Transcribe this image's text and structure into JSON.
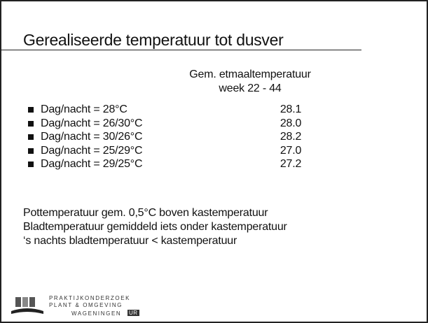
{
  "header": {
    "title": "Gerealiseerde temperatuur tot dusver"
  },
  "table": {
    "column_header": [
      "Gem. etmaaltemperatuur",
      "week 22 - 44"
    ],
    "rows": [
      {
        "label": "Dag/nacht = 28°C",
        "value": "28.1"
      },
      {
        "label": "Dag/nacht = 26/30°C",
        "value": "28.0"
      },
      {
        "label": "Dag/nacht = 30/26°C",
        "value": "28.2"
      },
      {
        "label": "Dag/nacht = 25/29°C",
        "value": "27.0"
      },
      {
        "label": "Dag/nacht = 29/25°C",
        "value": "27.2"
      }
    ]
  },
  "notes": [
    "Pottemperatuur gem. 0,5°C boven kastemperatuur",
    "Bladtemperatuur gemiddeld iets onder kastemperatuur",
    "‘s nachts bladtemperatuur < kastemperatuur"
  ],
  "footer": {
    "logo_line1": "PRAKTIJKONDERZOEK",
    "logo_line2": "PLANT & OMGEVING",
    "logo_line3": "WAGENINGEN",
    "logo_badge": "UR"
  }
}
